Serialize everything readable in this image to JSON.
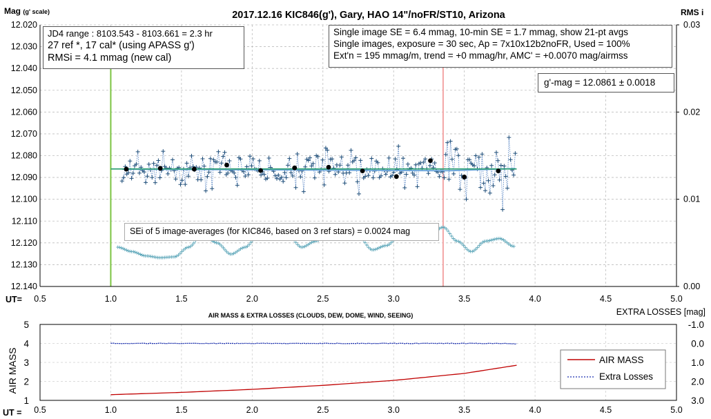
{
  "header": {
    "title": "2017.12.16  KIC846(g'),  Gary,  HAO  14\"/noFR/ST10,  Arizona",
    "left_label_main": "Mag",
    "left_label_sub": "(g' scale)",
    "right_label": "RMS i",
    "ut_label": "UT="
  },
  "info_left": [
    "JD4 range : 8103.543 - 8103.661 = 2.3  hr",
    "27 ref *, 17 cal* (using APASS g')",
    "RMSi = 4.1 mmag (new cal)"
  ],
  "info_right": [
    "Single image SE = 6.4 mmag, 10-min SE = 1.7 mmag, show  21-pt avgs",
    "Single images, exposure = 30 sec, Ap = 7x10x12b2noFR,  Used = 100%",
    "Ext'n = 195 mmag/m, trend =  +0 mmag/hr, AMC' = +0.0070 mag/airmss"
  ],
  "gmag_box": "g'-mag = 12.0861  ± 0.0018",
  "sei_box": "SEi of 5 image-averages (for KIC846, based on 3 ref stars) = 0.0024  mag",
  "bottom_header": {
    "title": "AIR MASS & EXTRA LOSSES (CLOUDS, DEW, DOME, WIND, SEEING)",
    "extra_label": "EXTRA LOSSES [mag]",
    "y_label": "AIR MASS",
    "ut_label": "UT ="
  },
  "legend": {
    "airmass": "AIR MASS",
    "extra": "Extra Losses"
  },
  "colors": {
    "points": "#1f4e79",
    "dotted_line": "#4a7bbf",
    "green_line": "#2e9e72",
    "vline_green": "#7cc442",
    "vline_pink": "#f4a6a6",
    "rms": "#5aa5b8",
    "airmass": "#c00000",
    "extra": "#1a2fb0"
  },
  "chart_data": [
    {
      "type": "scatter",
      "title": "2017.12.16  KIC846(g'),  Gary,  HAO  14\"/noFR/ST10,  Arizona",
      "xlabel": "UT=",
      "ylabel": "Mag (g' scale)",
      "y2label": "RMS i",
      "xlim": [
        0.5,
        5.0
      ],
      "ylim": [
        12.14,
        12.02
      ],
      "y2lim": [
        0.0,
        0.03
      ],
      "x_ticks": [
        "0.5",
        "1.0",
        "1.5",
        "2.0",
        "2.5",
        "3.0",
        "3.5",
        "4.0",
        "4.5",
        "5.0"
      ],
      "y_ticks": [
        "12.020",
        "12.030",
        "12.040",
        "12.050",
        "12.060",
        "12.070",
        "12.080",
        "12.090",
        "12.100",
        "12.110",
        "12.120",
        "12.130",
        "12.140"
      ],
      "y2_ticks": [
        "0.03",
        "0.02",
        "0.01",
        "0.00"
      ],
      "grid": true,
      "single_image_range": [
        1.08,
        3.86
      ],
      "single_image_trend": [
        [
          1.08,
          12.0862
        ],
        [
          3.4,
          12.0869
        ],
        [
          3.86,
          12.0859
        ]
      ],
      "avg_points": {
        "x": [
          1.11,
          1.35,
          1.59,
          1.82,
          2.06,
          2.3,
          2.54,
          2.78,
          3.02,
          3.26,
          3.5,
          3.74
        ],
        "y": [
          12.0862,
          12.0858,
          12.0862,
          12.0843,
          12.0868,
          12.0856,
          12.0853,
          12.087,
          12.0896,
          12.0823,
          12.0898,
          12.087
        ]
      },
      "model_line": {
        "x": [
          1.0,
          3.87
        ],
        "y": [
          12.0861,
          12.0861
        ]
      },
      "rms_curve": {
        "x": [
          1.05,
          1.15,
          1.25,
          1.35,
          1.45,
          1.55,
          1.65,
          1.75,
          1.85,
          1.95,
          2.05,
          2.15,
          2.25,
          2.35,
          2.45,
          2.55,
          2.65,
          2.75,
          2.85,
          2.95,
          3.05,
          3.15,
          3.25,
          3.3,
          3.35,
          3.45,
          3.55,
          3.65,
          3.75,
          3.85
        ],
        "y": [
          0.0045,
          0.004,
          0.0035,
          0.0033,
          0.0034,
          0.0045,
          0.006,
          0.005,
          0.0037,
          0.0045,
          0.006,
          0.0065,
          0.006,
          0.0045,
          0.0052,
          0.0064,
          0.0065,
          0.0058,
          0.0042,
          0.0047,
          0.006,
          0.0055,
          0.006,
          0.0065,
          0.0068,
          0.0052,
          0.004,
          0.0052,
          0.0055,
          0.0046
        ]
      },
      "vertical_markers": [
        1.0,
        3.35
      ]
    },
    {
      "type": "line",
      "title": "AIR MASS & EXTRA LOSSES (CLOUDS, DEW, DOME, WIND, SEEING)",
      "xlabel": "UT =",
      "ylabel": "AIR MASS",
      "y2label": "EXTRA LOSSES [mag]",
      "xlim": [
        0.5,
        5.0
      ],
      "ylim": [
        1,
        5
      ],
      "y2lim": [
        3.0,
        -1.0
      ],
      "x_ticks": [
        "0.5",
        "1.0",
        "1.5",
        "2.0",
        "2.5",
        "3.0",
        "3.5",
        "4.0",
        "4.5",
        "5.0"
      ],
      "y_ticks": [
        "1",
        "2",
        "3",
        "4",
        "5"
      ],
      "y2_ticks": [
        "-1.0",
        "0.0",
        "1.0",
        "2.0",
        "3.0"
      ],
      "series": [
        {
          "name": "AIR MASS",
          "x": [
            1.0,
            1.5,
            2.0,
            2.5,
            3.0,
            3.5,
            3.87
          ],
          "y": [
            1.3,
            1.42,
            1.58,
            1.79,
            2.05,
            2.42,
            2.85
          ]
        },
        {
          "name": "Extra Losses",
          "x": [
            1.0,
            1.5,
            2.0,
            2.5,
            3.0,
            3.5,
            3.87
          ],
          "y": [
            0.0,
            0.0,
            0.0,
            0.0,
            0.0,
            0.0,
            0.02
          ]
        }
      ],
      "legend_position": "right"
    }
  ]
}
